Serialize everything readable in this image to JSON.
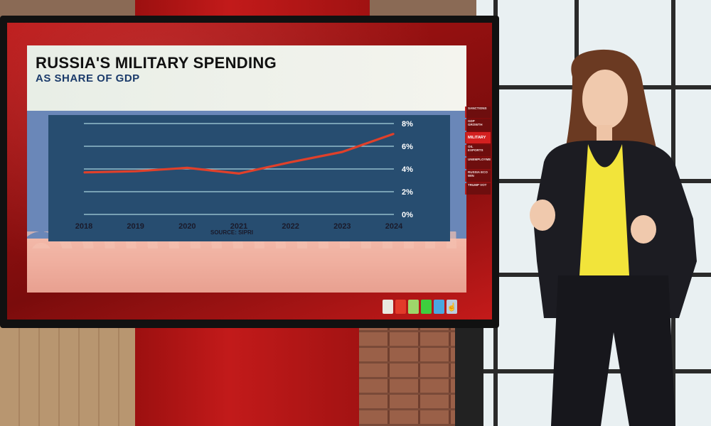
{
  "title": "RUSSIA'S MILITARY SPENDING",
  "subtitle": "AS SHARE OF GDP",
  "source": "SOURCE: SIPRI",
  "nav_items": [
    {
      "label": "SANCTIONS",
      "active": false
    },
    {
      "label": "GDP GROWTH",
      "active": false
    },
    {
      "label": "MILITARY",
      "active": true
    },
    {
      "label": "OIL EXPORTS",
      "active": false
    },
    {
      "label": "UNEMPLOYMENT",
      "active": false
    },
    {
      "label": "RUSSIA ECO WIN",
      "active": false
    },
    {
      "label": "TRUMP VOT",
      "active": false
    }
  ],
  "swatch_colors": [
    "#e8e8e0",
    "#e23a2a",
    "#9ed66a",
    "#3ecf3e",
    "#4aa8e0"
  ],
  "swatch_icon": "hand-pointer-icon",
  "colors": {
    "line": "#e0402a",
    "plot_bg": "#274d70",
    "gridline": "#a8d4dc",
    "tick_text": "#ffffff",
    "x_tick_text": "#1a1a2a"
  },
  "chart_data": {
    "type": "line",
    "title": "RUSSIA'S MILITARY SPENDING",
    "subtitle": "AS SHARE OF GDP",
    "x": [
      "2018",
      "2019",
      "2020",
      "2021",
      "2022",
      "2023",
      "2024"
    ],
    "series": [
      {
        "values": [
          3.7,
          3.8,
          4.1,
          3.6,
          4.6,
          5.5,
          7.1
        ]
      }
    ],
    "ylim": [
      0,
      8
    ],
    "yticks": [
      "0%",
      "2%",
      "4%",
      "6%",
      "8%"
    ],
    "grid": true,
    "source": "SOURCE: SIPRI"
  }
}
